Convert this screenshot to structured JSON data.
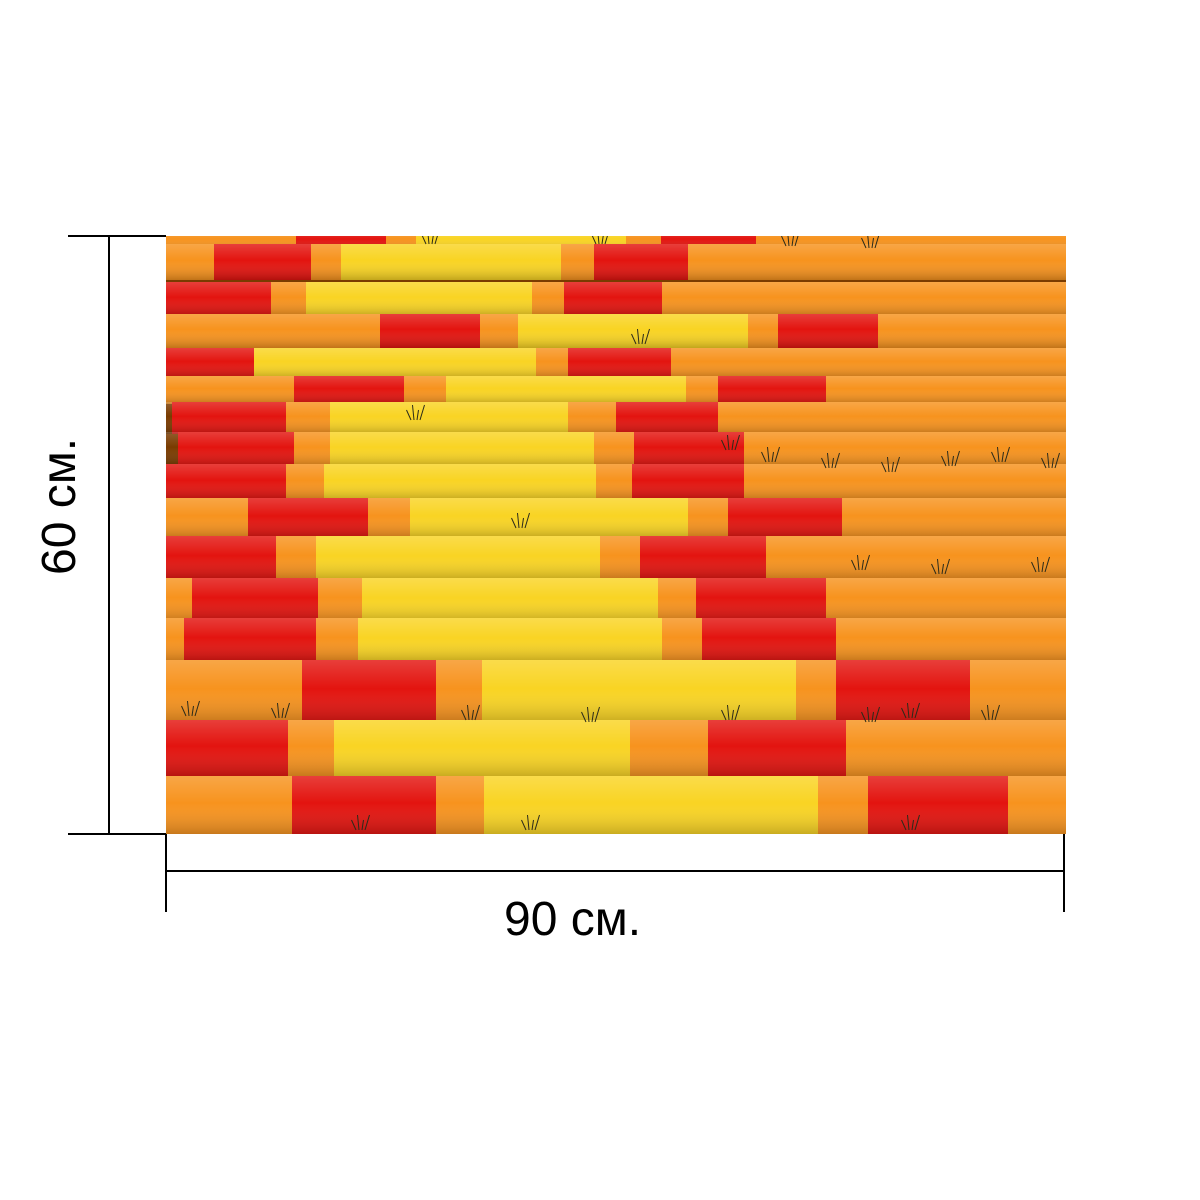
{
  "dimensions": {
    "width_label": "90 см.",
    "height_label": "60 см."
  },
  "product_image": {
    "subject": "painted-poles",
    "colors": {
      "orange": "#f7931e",
      "orange_dark": "#e8780f",
      "yellow": "#f9d423",
      "red": "#e3140f",
      "grass": "#2b2b1a",
      "shadow": "#7a3b00"
    }
  }
}
